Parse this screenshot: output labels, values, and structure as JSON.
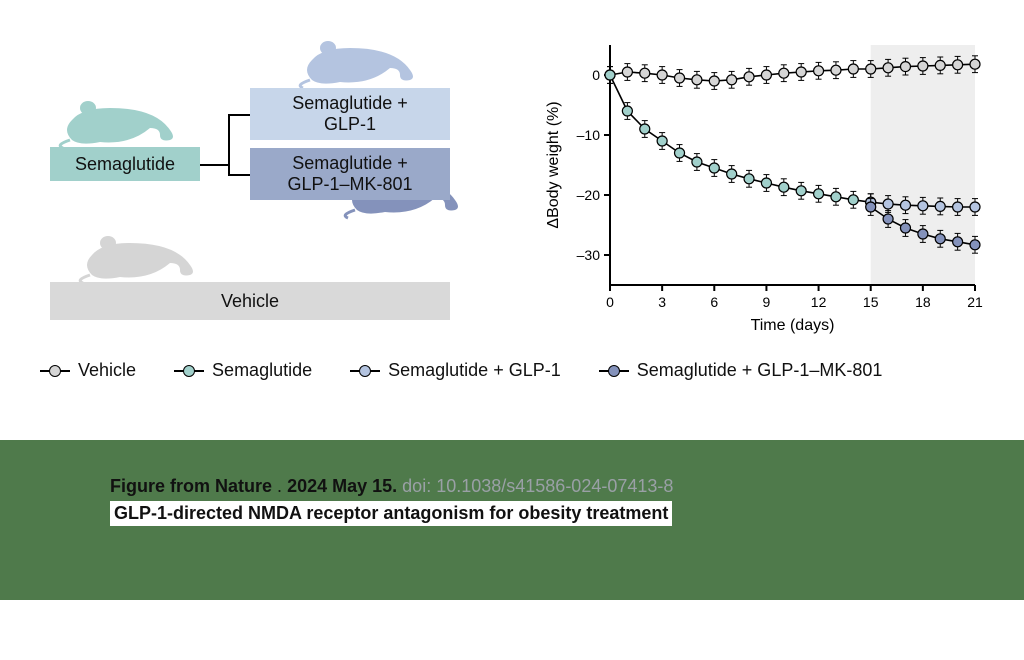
{
  "colors": {
    "vehicle": "#d5d5d5",
    "semaglutide": "#a1d0cb",
    "sema_glp1": "#b4c4e0",
    "sema_glp1_mk801": "#8492bb",
    "caption_bg": "#4f7a4b",
    "box_sema_bg": "#a1d0cb",
    "box_sema_glp1_bg": "#c7d6ea",
    "box_sema_glp1_mk801_bg": "#9aa9c9",
    "box_vehicle_bg": "#d9d9d9",
    "chart_shade": "#eeeeee"
  },
  "diagram": {
    "semaglutide_label": "Semaglutide",
    "sema_glp1_label": "Semaglutide +\nGLP-1",
    "sema_glp1_mk801_label": "Semaglutide +\nGLP-1–MK-801",
    "vehicle_label": "Vehicle"
  },
  "legend": [
    {
      "label": "Vehicle",
      "color_key": "vehicle"
    },
    {
      "label": "Semaglutide",
      "color_key": "semaglutide"
    },
    {
      "label": "Semaglutide  + GLP-1",
      "color_key": "sema_glp1"
    },
    {
      "label": "Semaglutide  + GLP-1–MK-801",
      "color_key": "sema_glp1_mk801"
    }
  ],
  "chart": {
    "type": "line",
    "xlabel": "Time (days)",
    "ylabel": "ΔBody weight (%)",
    "xlim": [
      0,
      21
    ],
    "ylim": [
      -35,
      5
    ],
    "xticks": [
      0,
      3,
      6,
      9,
      12,
      15,
      18,
      21
    ],
    "yticks": [
      0,
      -10,
      -20,
      -30
    ],
    "shade_region": [
      15,
      21
    ],
    "label_fontsize": 16,
    "tick_fontsize": 14,
    "marker_radius": 5,
    "line_width": 1.6,
    "error_bar_half": 1.4,
    "series": {
      "vehicle": {
        "color_key": "vehicle",
        "x": [
          0,
          1,
          2,
          3,
          4,
          5,
          6,
          7,
          8,
          9,
          10,
          11,
          12,
          13,
          14,
          15,
          16,
          17,
          18,
          19,
          20,
          21
        ],
        "y": [
          0,
          0.5,
          0.3,
          0,
          -0.5,
          -0.8,
          -1,
          -0.8,
          -0.3,
          0,
          0.3,
          0.5,
          0.7,
          0.8,
          1,
          1,
          1.2,
          1.4,
          1.5,
          1.6,
          1.7,
          1.8
        ]
      },
      "semaglutide": {
        "color_key": "semaglutide",
        "x": [
          0,
          1,
          2,
          3,
          4,
          5,
          6,
          7,
          8,
          9,
          10,
          11,
          12,
          13,
          14,
          15
        ],
        "y": [
          0,
          -6,
          -9,
          -11,
          -13,
          -14.5,
          -15.5,
          -16.5,
          -17.3,
          -18,
          -18.7,
          -19.3,
          -19.8,
          -20.3,
          -20.8,
          -21.2
        ]
      },
      "sema_glp1": {
        "color_key": "sema_glp1",
        "x": [
          15,
          16,
          17,
          18,
          19,
          20,
          21
        ],
        "y": [
          -21.2,
          -21.5,
          -21.7,
          -21.8,
          -21.9,
          -22,
          -22
        ]
      },
      "sema_glp1_mk801": {
        "color_key": "sema_glp1_mk801",
        "x": [
          15,
          16,
          17,
          18,
          19,
          20,
          21
        ],
        "y": [
          -22,
          -24,
          -25.5,
          -26.5,
          -27.3,
          -27.8,
          -28.3
        ]
      }
    }
  },
  "caption": {
    "prefix_bold": "Figure from   Nature",
    "date_bold": "2024 May 15.",
    "doi_grey": "doi: 10.1038/s41586-024-07413-8",
    "title_line": "GLP-1-directed NMDA receptor antagonism for obesity treatment"
  }
}
